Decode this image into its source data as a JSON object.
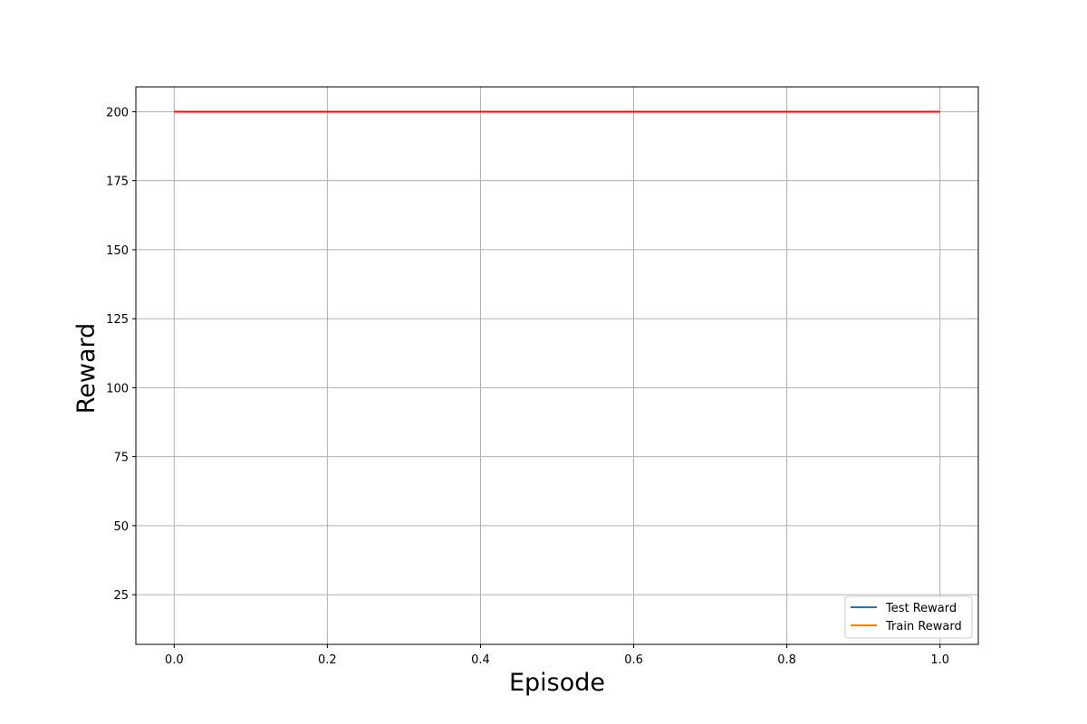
{
  "chart_data": {
    "type": "line",
    "title": "",
    "xlabel": "Episode",
    "ylabel": "Reward",
    "xlim": [
      -0.05,
      1.05
    ],
    "ylim": [
      7,
      209
    ],
    "xticks": [
      0.0,
      0.2,
      0.4,
      0.6,
      0.8,
      1.0
    ],
    "xtick_labels": [
      "0.0",
      "0.2",
      "0.4",
      "0.6",
      "0.8",
      "1.0"
    ],
    "yticks": [
      25,
      50,
      75,
      100,
      125,
      150,
      175,
      200
    ],
    "ytick_labels": [
      "25",
      "50",
      "75",
      "100",
      "125",
      "150",
      "175",
      "200"
    ],
    "grid": true,
    "legend_position": "lower-right",
    "series": [
      {
        "name": "Test Reward",
        "color": "#1f77b4",
        "x": [],
        "y": []
      },
      {
        "name": "Train Reward",
        "color": "#ff7f0e",
        "x": [],
        "y": []
      }
    ],
    "reference_lines": [
      {
        "color": "#ff0000",
        "x": [
          0.0,
          1.0
        ],
        "y": [
          200,
          200
        ]
      }
    ]
  }
}
